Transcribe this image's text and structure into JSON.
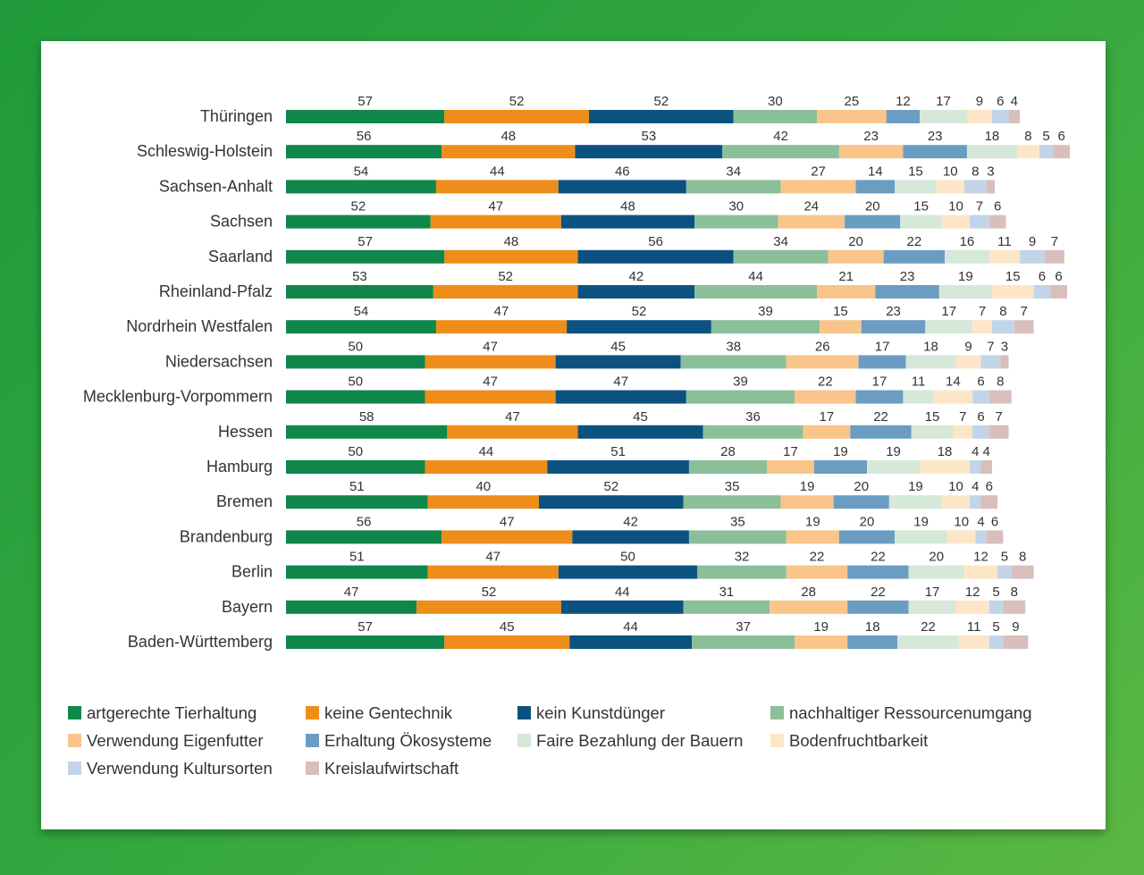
{
  "chart_data": {
    "type": "bar",
    "orientation": "horizontal",
    "stacked": true,
    "categories": [
      "Thüringen",
      "Schleswig-Holstein",
      "Sachsen-Anhalt",
      "Sachsen",
      "Saarland",
      "Rheinland-Pfalz",
      "Nordrhein Westfalen",
      "Niedersachsen",
      "Mecklenburg-Vorpommern",
      "Hessen",
      "Hamburg",
      "Bremen",
      "Brandenburg",
      "Berlin",
      "Bayern",
      "Baden-Württemberg"
    ],
    "series": [
      {
        "name": "artgerechte Tierhaltung",
        "color": "#10874a",
        "values": [
          57,
          56,
          54,
          52,
          57,
          53,
          54,
          50,
          50,
          58,
          50,
          51,
          56,
          51,
          47,
          57
        ]
      },
      {
        "name": "keine Gentechnik",
        "color": "#ee8d1a",
        "values": [
          52,
          48,
          44,
          47,
          48,
          52,
          47,
          47,
          47,
          47,
          44,
          40,
          47,
          47,
          52,
          45
        ]
      },
      {
        "name": "kein Kunstdünger",
        "color": "#0c5281",
        "values": [
          52,
          53,
          46,
          48,
          56,
          42,
          52,
          45,
          47,
          45,
          51,
          52,
          42,
          50,
          44,
          44
        ]
      },
      {
        "name": "nachhaltiger Ressourcenumgang",
        "color": "#8bbf9a",
        "values": [
          30,
          42,
          34,
          30,
          34,
          44,
          39,
          38,
          39,
          36,
          28,
          35,
          35,
          32,
          31,
          37
        ]
      },
      {
        "name": "Verwendung Eigenfutter",
        "color": "#f9c58a",
        "values": [
          25,
          23,
          27,
          24,
          20,
          21,
          15,
          26,
          22,
          17,
          17,
          19,
          19,
          22,
          28,
          19
        ]
      },
      {
        "name": "Erhaltung Ökosysteme",
        "color": "#6b9dc2",
        "values": [
          12,
          23,
          14,
          20,
          22,
          23,
          23,
          17,
          17,
          22,
          19,
          20,
          20,
          22,
          22,
          18
        ]
      },
      {
        "name": "Faire Bezahlung der Bauern",
        "color": "#d6e8d8",
        "values": [
          17,
          18,
          15,
          15,
          16,
          19,
          17,
          18,
          11,
          15,
          19,
          19,
          19,
          20,
          17,
          22
        ]
      },
      {
        "name": "Bodenfruchtbarkeit",
        "color": "#fde6c8",
        "values": [
          9,
          8,
          10,
          10,
          11,
          15,
          7,
          9,
          14,
          7,
          18,
          10,
          10,
          12,
          12,
          11
        ]
      },
      {
        "name": "Verwendung Kultursorten",
        "color": "#c2d5e8",
        "values": [
          6,
          5,
          8,
          7,
          9,
          6,
          8,
          7,
          6,
          6,
          4,
          4,
          4,
          5,
          5,
          5
        ]
      },
      {
        "name": "Kreislaufwirtschaft",
        "color": "#d8bfbb",
        "values": [
          4,
          6,
          3,
          6,
          7,
          6,
          7,
          3,
          8,
          7,
          4,
          6,
          6,
          8,
          8,
          9
        ]
      }
    ],
    "legend_position": "bottom",
    "grid": false,
    "axis_ticks": false
  }
}
